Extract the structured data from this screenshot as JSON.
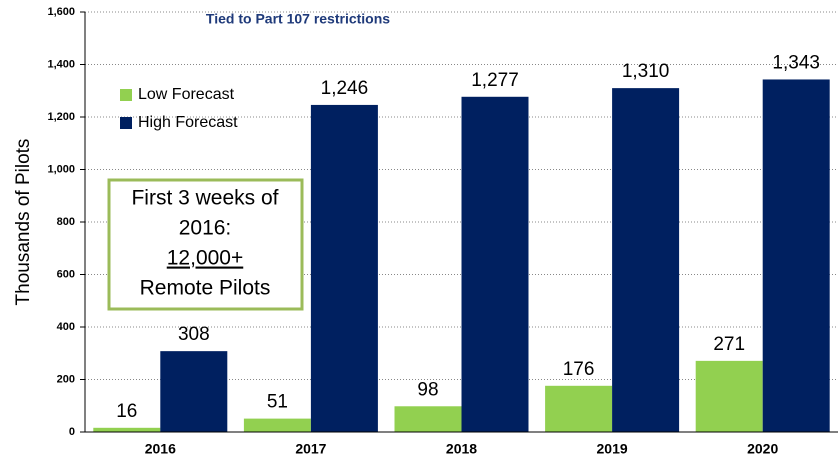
{
  "chart_data": {
    "type": "bar",
    "annotation": "Tied to Part 107 restrictions",
    "callout": [
      "First 3 weeks of",
      "2016:",
      "12,000+",
      "Remote Pilots"
    ],
    "y_label": "Thousands of Pilots",
    "categories": [
      "2016",
      "2017",
      "2018",
      "2019",
      "2020"
    ],
    "series": [
      {
        "name": "Low Forecast",
        "color": "#92d050",
        "values": [
          16,
          51,
          98,
          176,
          271
        ]
      },
      {
        "name": "High Forecast",
        "color": "#002060",
        "values": [
          308,
          1246,
          1277,
          1310,
          1343
        ],
        "value_labels": [
          "308",
          "1,246",
          "1,277",
          "1,310",
          "1,343"
        ]
      }
    ],
    "ylim": [
      0,
      1600
    ],
    "yticks": [
      0,
      200,
      400,
      600,
      800,
      {
        "value": 1000,
        "label": "1,000"
      },
      {
        "value": 1200,
        "label": "1,200"
      },
      {
        "value": 1400,
        "label": "1,400"
      },
      {
        "value": 1600,
        "label": "1,600"
      }
    ],
    "grid": true,
    "legend": "upper left"
  }
}
